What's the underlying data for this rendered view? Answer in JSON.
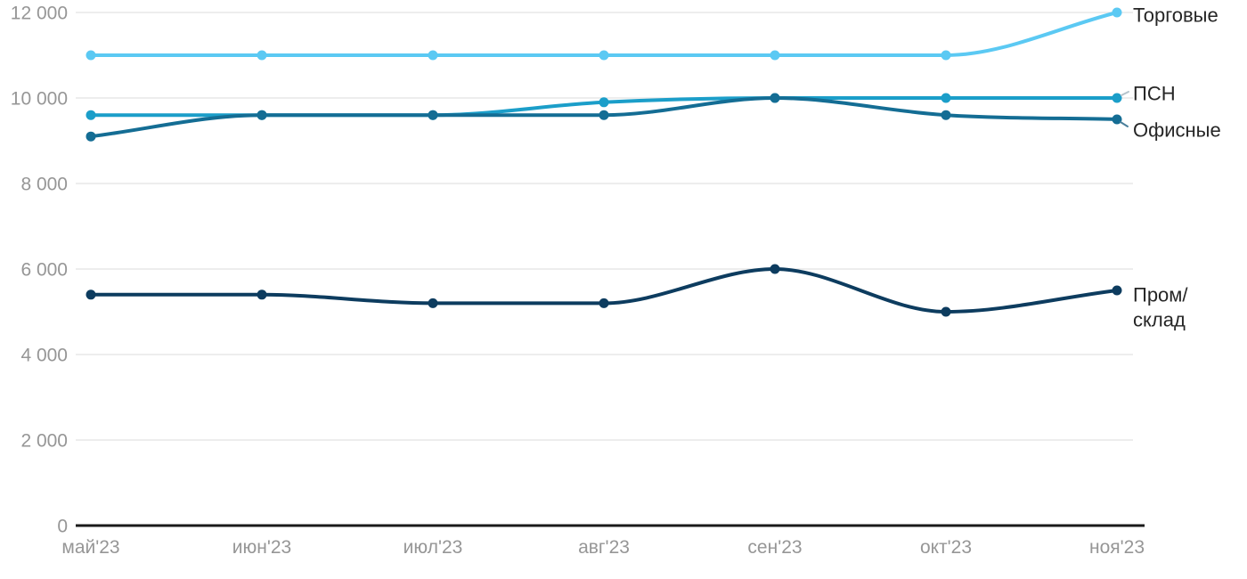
{
  "chart_data": {
    "type": "line",
    "title": "",
    "xlabel": "",
    "ylabel": "",
    "x_categories": [
      "май'23",
      "июн'23",
      "июл'23",
      "авг'23",
      "сен'23",
      "окт'23",
      "ноя'23"
    ],
    "y_ticks": [
      {
        "value": 0,
        "label": "0"
      },
      {
        "value": 2000,
        "label": "2 000"
      },
      {
        "value": 4000,
        "label": "4 000"
      },
      {
        "value": 6000,
        "label": "6 000"
      },
      {
        "value": 8000,
        "label": "8 000"
      },
      {
        "value": 10000,
        "label": "10 000"
      },
      {
        "value": 12000,
        "label": "12 000"
      }
    ],
    "ylim": [
      0,
      12000
    ],
    "grid": "horizontal",
    "legend_position": "inline-end-labels",
    "colors": {
      "grid": "#e7e7e7",
      "axis": "#1a1a1a",
      "tick_label": "#969696",
      "series_label": "#262626"
    },
    "series": [
      {
        "key": "torgovye",
        "name": "Торговые",
        "label_lines": [
          "Торговые"
        ],
        "color": "#5bc9f3",
        "values": [
          11000,
          11000,
          11000,
          11000,
          11000,
          11000,
          12000
        ]
      },
      {
        "key": "psn",
        "name": "ПСН",
        "label_lines": [
          "ПСН"
        ],
        "color": "#1b9ec9",
        "values": [
          9600,
          9600,
          9600,
          9900,
          10000,
          10000,
          10000
        ]
      },
      {
        "key": "ofisnye",
        "name": "Офисные",
        "label_lines": [
          "Офисные"
        ],
        "color": "#146d94",
        "values": [
          9100,
          9600,
          9600,
          9600,
          10000,
          9600,
          9500
        ]
      },
      {
        "key": "prom",
        "name": "Пром/склад",
        "label_lines": [
          "Пром/",
          "склад"
        ],
        "color": "#0d3c5f",
        "values": [
          5400,
          5400,
          5200,
          5200,
          6000,
          5000,
          5500
        ]
      }
    ]
  }
}
